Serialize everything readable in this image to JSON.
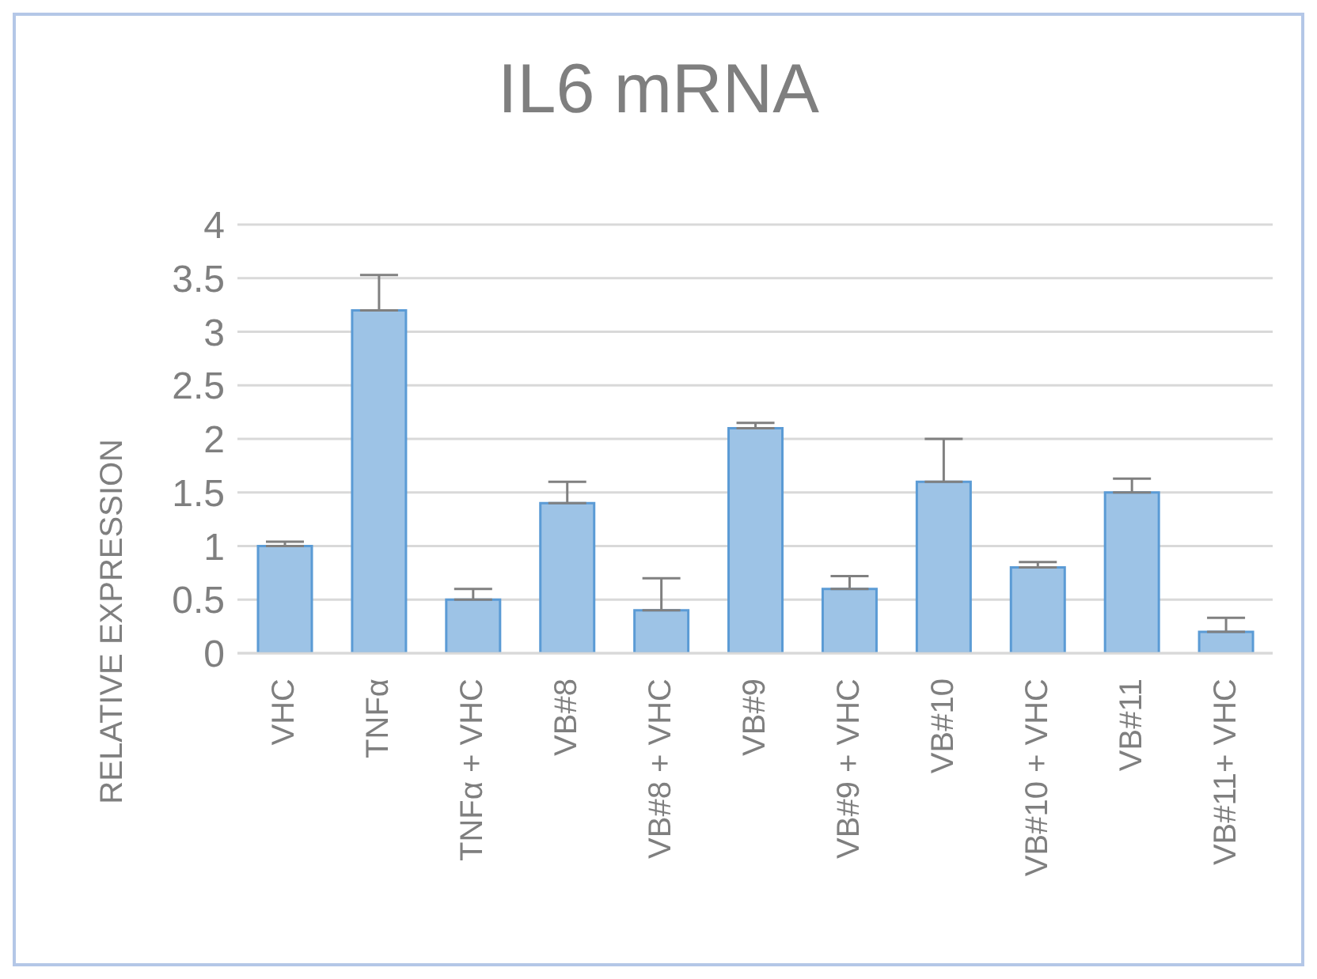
{
  "chart_data": {
    "type": "bar",
    "title": "IL6 mRNA",
    "ylabel": "RELATIVE EXPRESSION",
    "categories": [
      "VHC",
      "TNFα",
      "TNFα + VHC",
      "VB#8",
      "VB#8 + VHC",
      "VB#9",
      "VB#9 + VHC",
      "VB#10",
      "VB#10 + VHC",
      "VB#11",
      "VB#11+ VHC"
    ],
    "values": [
      1.0,
      3.2,
      0.5,
      1.4,
      0.4,
      2.1,
      0.6,
      1.6,
      0.8,
      1.5,
      0.2
    ],
    "errors": [
      [
        1.0,
        1.04
      ],
      [
        3.2,
        3.53
      ],
      [
        0.5,
        0.6
      ],
      [
        1.4,
        1.6
      ],
      [
        0.4,
        0.7
      ],
      [
        2.1,
        2.15
      ],
      [
        0.6,
        0.72
      ],
      [
        1.6,
        2.0
      ],
      [
        0.8,
        0.85
      ],
      [
        1.5,
        1.63
      ],
      [
        0.2,
        0.33
      ]
    ],
    "color": "#9dc3e6",
    "ylim": [
      0,
      4
    ],
    "yticks": [
      0,
      0.5,
      1,
      1.5,
      2,
      2.5,
      3,
      3.5,
      4
    ],
    "grid": "y",
    "legend": false
  }
}
